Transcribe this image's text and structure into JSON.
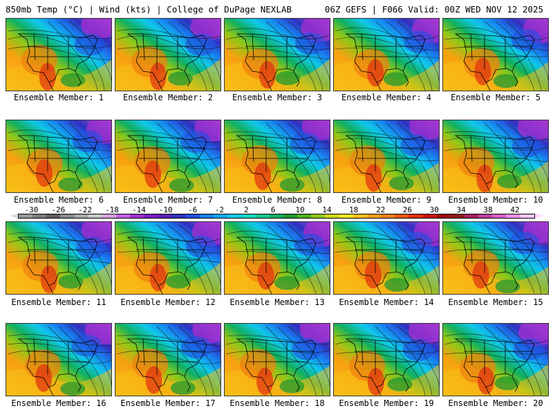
{
  "header": {
    "left": "850mb Temp (°C) | Wind (kts) | College of DuPage NEXLAB",
    "right": "06Z GEFS | F066 Valid: 00Z WED NOV 12 2025"
  },
  "caption_prefix": "Ensemble Member:",
  "members": [
    {
      "number": "1"
    },
    {
      "number": "2"
    },
    {
      "number": "3"
    },
    {
      "number": "4"
    },
    {
      "number": "5"
    },
    {
      "number": "6"
    },
    {
      "number": "7"
    },
    {
      "number": "8"
    },
    {
      "number": "9"
    },
    {
      "number": "10"
    },
    {
      "number": "11"
    },
    {
      "number": "12"
    },
    {
      "number": "13"
    },
    {
      "number": "14"
    },
    {
      "number": "15"
    },
    {
      "number": "16"
    },
    {
      "number": "17"
    },
    {
      "number": "18"
    },
    {
      "number": "19"
    },
    {
      "number": "20"
    }
  ],
  "colorbar": {
    "labels": [
      "-30",
      "-26",
      "-22",
      "-18",
      "-14",
      "-10",
      "-6",
      "-2",
      "2",
      "6",
      "10",
      "14",
      "18",
      "22",
      "26",
      "30",
      "34",
      "38",
      "42"
    ],
    "colors": [
      "#9a9a9a",
      "#7c7c7c",
      "#5e5e5e",
      "#8b8b8b",
      "#aaaaaa",
      "#c8c8c8",
      "#d8a0e0",
      "#c060e0",
      "#a030d0",
      "#7a1cc8",
      "#5a20b8",
      "#3030c0",
      "#2050e0",
      "#1880f0",
      "#10a8f0",
      "#10c8e8",
      "#10d8c0",
      "#10c890",
      "#10b060",
      "#209830",
      "#50b020",
      "#90c818",
      "#d0d818",
      "#f8e820",
      "#f8c018",
      "#f8a010",
      "#f08010",
      "#e85810",
      "#e03010",
      "#c81010",
      "#a00808",
      "#901818",
      "#a82060",
      "#c040a0",
      "#d860c8",
      "#f090f0",
      "#ffc8ff"
    ]
  }
}
